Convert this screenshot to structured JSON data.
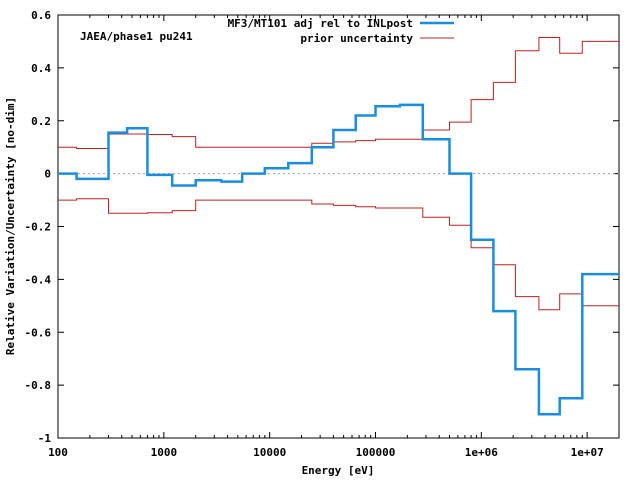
{
  "chart_data": {
    "type": "line",
    "step": true,
    "xscale": "log",
    "xlabel": "Energy [eV]",
    "ylabel": "Relative Variation/Uncertainty [no-dim]",
    "xlim": [
      100,
      20000000
    ],
    "ylim": [
      -1,
      0.6
    ],
    "annotation": "JAEA/phase1 pu241",
    "xticks": [
      {
        "value": 100,
        "label": "100"
      },
      {
        "value": 1000,
        "label": "1000"
      },
      {
        "value": 10000,
        "label": "10000"
      },
      {
        "value": 100000,
        "label": "100000"
      },
      {
        "value": 1000000,
        "label": "1e+06"
      },
      {
        "value": 10000000,
        "label": "1e+07"
      }
    ],
    "yticks": [
      {
        "value": 0.6,
        "label": "0.6"
      },
      {
        "value": 0.4,
        "label": "0.4"
      },
      {
        "value": 0.2,
        "label": "0.2"
      },
      {
        "value": 0,
        "label": "0"
      },
      {
        "value": -0.2,
        "label": "-0.2"
      },
      {
        "value": -0.4,
        "label": "-0.4"
      },
      {
        "value": -0.6,
        "label": "-0.6"
      },
      {
        "value": -0.8,
        "label": "-0.8"
      },
      {
        "value": -1,
        "label": "-1"
      }
    ],
    "zero_line": true,
    "series": [
      {
        "name": "MF3/MT101 adj rel to INLpost",
        "color": "#1a8ddf",
        "bin_edges": [
          100,
          150,
          300,
          450,
          700,
          1200,
          2000,
          3500,
          5500,
          9000,
          15000,
          25000,
          40000,
          65000,
          100000,
          170000,
          280000,
          500000,
          800000,
          1300000,
          2100000,
          3500000,
          5500000,
          9000000,
          20000000
        ],
        "values": [
          0,
          -0.02,
          0.155,
          0.172,
          -0.005,
          -0.045,
          -0.025,
          -0.03,
          0,
          0.02,
          0.04,
          0.1,
          0.165,
          0.22,
          0.255,
          0.26,
          0.13,
          0,
          -0.25,
          -0.52,
          -0.74,
          -0.91,
          -0.85,
          -0.38
        ]
      },
      {
        "name": "prior uncertainty",
        "color": "#c02020",
        "mirrored": true,
        "bin_edges": [
          100,
          150,
          300,
          700,
          1200,
          2000,
          25000,
          40000,
          65000,
          100000,
          280000,
          500000,
          800000,
          1300000,
          2100000,
          3500000,
          5500000,
          9000000,
          20000000
        ],
        "values": [
          0.1,
          0.095,
          0.15,
          0.148,
          0.14,
          0.1,
          0.115,
          0.12,
          0.125,
          0.13,
          0.165,
          0.195,
          0.28,
          0.345,
          0.465,
          0.515,
          0.455,
          0.5
        ]
      }
    ]
  }
}
